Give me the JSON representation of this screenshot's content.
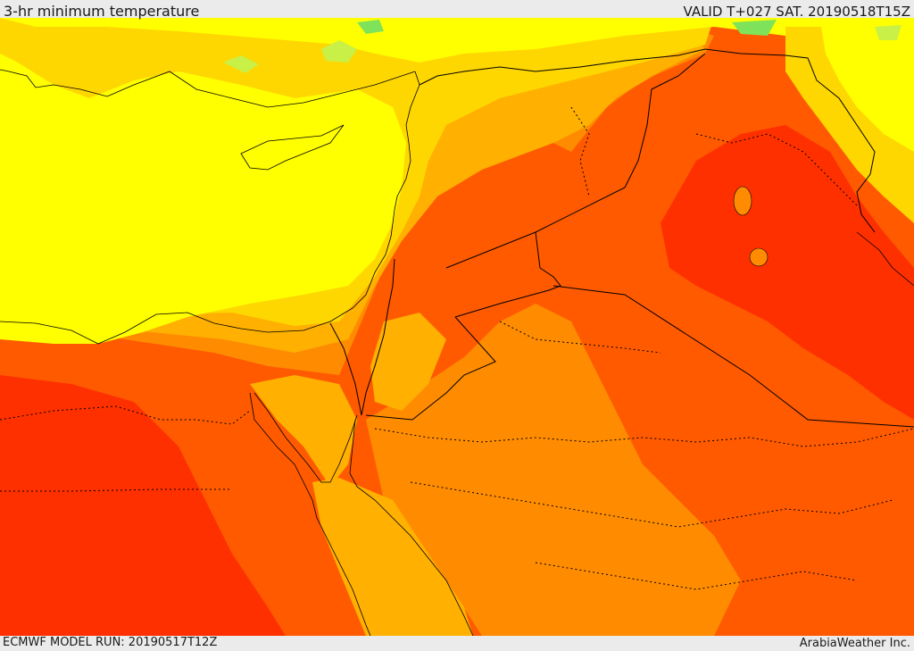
{
  "header": {
    "title": "3-hr minimum temperature",
    "valid": "VALID T+027 SAT. 20190518T15Z"
  },
  "footer": {
    "model_run": "ECMWF MODEL RUN: 20190517T12Z",
    "credit": "ArabiaWeather Inc."
  },
  "map": {
    "variable": "3-hr minimum temperature",
    "colors": {
      "green": "#7ee35a",
      "light_green": "#c8f046",
      "yellow": "#ffff00",
      "gold": "#ffd700",
      "light_orange": "#ffb000",
      "orange": "#ff8c00",
      "red_orange": "#ff5a00",
      "red": "#ff3000"
    }
  }
}
